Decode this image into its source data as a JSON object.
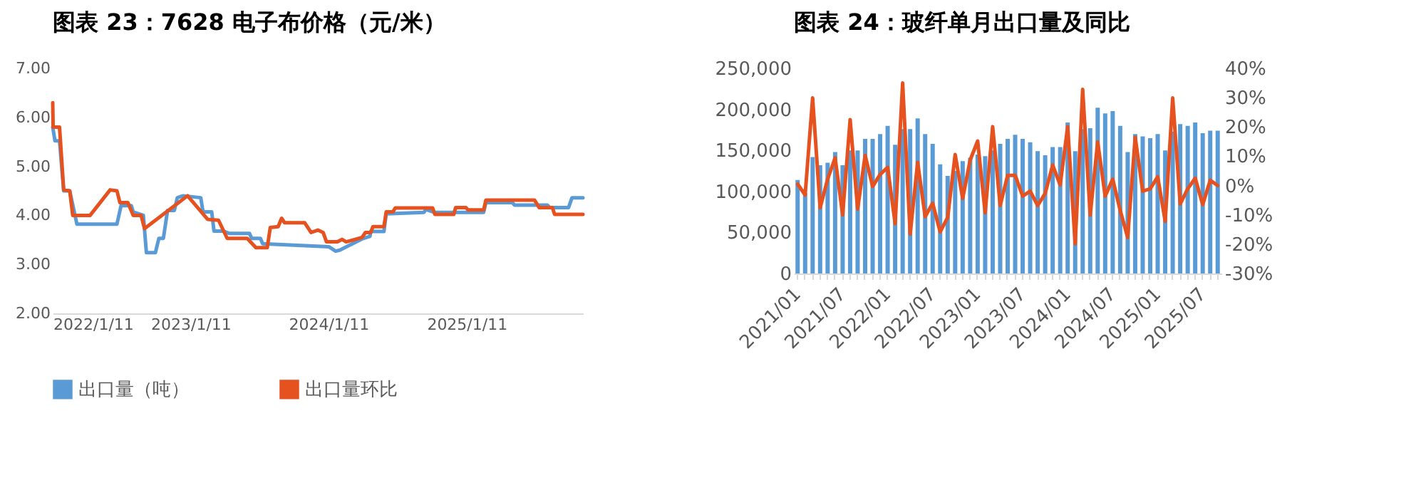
{
  "chart_data": [
    {
      "type": "line",
      "title": "图表 23：7628 电子布价格（元/米）",
      "series": [
        {
          "color": "#5b9bd5",
          "x": [
            "2022-01-11",
            "2022-01-17",
            "2022-01-29",
            "2022-02-09",
            "2022-02-25",
            "2022-03-16",
            "2022-06-30",
            "2022-07-11",
            "2022-08-07",
            "2022-08-12",
            "2022-09-08",
            "2022-09-16",
            "2022-10-10",
            "2022-10-19",
            "2022-10-31",
            "2022-11-11",
            "2022-11-29",
            "2022-12-07",
            "2022-12-22",
            "2023-02-07",
            "2023-02-13",
            "2023-03-08",
            "2023-03-14",
            "2023-04-07",
            "2023-04-24",
            "2023-06-16",
            "2023-06-22",
            "2023-07-15",
            "2023-07-21",
            "2024-01-12",
            "2024-01-30",
            "2024-02-10",
            "2024-04-09",
            "2024-04-30",
            "2024-05-02",
            "2024-06-06",
            "2024-06-12",
            "2024-09-20",
            "2024-09-25",
            "2024-10-19",
            "2025-02-25",
            "2025-03-03",
            "2025-05-12",
            "2025-05-18",
            "2025-08-13",
            "2025-08-19",
            "2025-10-08",
            "2025-10-17",
            "2025-11-15"
          ],
          "values": [
            5.8,
            5.52,
            5.52,
            4.5,
            4.5,
            3.82,
            3.82,
            4.2,
            4.2,
            4.07,
            4.0,
            3.24,
            3.24,
            3.53,
            3.53,
            4.1,
            4.1,
            4.36,
            4.4,
            4.36,
            4.07,
            4.07,
            3.68,
            3.68,
            3.63,
            3.63,
            3.53,
            3.53,
            3.42,
            3.36,
            3.27,
            3.29,
            3.52,
            3.57,
            3.67,
            3.67,
            4.03,
            4.06,
            4.12,
            4.06,
            4.06,
            4.26,
            4.26,
            4.21,
            4.21,
            4.16,
            4.16,
            4.36,
            4.36
          ]
        },
        {
          "color": "#e5511f",
          "x": [
            "2022-01-11",
            "2022-01-12",
            "2022-01-29",
            "2022-02-09",
            "2022-02-25",
            "2022-03-05",
            "2022-04-20",
            "2022-06-12",
            "2022-06-30",
            "2022-07-08",
            "2022-07-29",
            "2022-08-12",
            "2022-09-02",
            "2022-09-11",
            "2023-01-03",
            "2023-02-25",
            "2023-03-26",
            "2023-04-18",
            "2023-06-10",
            "2023-07-03",
            "2023-08-02",
            "2023-08-10",
            "2023-08-31",
            "2023-09-09",
            "2023-09-17",
            "2023-11-09",
            "2023-11-26",
            "2023-12-14",
            "2023-12-28",
            "2024-01-06",
            "2024-02-04",
            "2024-02-16",
            "2024-02-27",
            "2024-03-22",
            "2024-04-09",
            "2024-04-18",
            "2024-05-02",
            "2024-05-08",
            "2024-06-06",
            "2024-06-12",
            "2024-06-30",
            "2024-07-06",
            "2024-10-13",
            "2024-10-19",
            "2024-12-08",
            "2024-12-13",
            "2025-01-09",
            "2025-01-15",
            "2025-02-25",
            "2025-03-03",
            "2025-07-10",
            "2025-07-22",
            "2025-08-26",
            "2025-09-01",
            "2025-11-15"
          ],
          "values": [
            6.3,
            5.8,
            5.8,
            4.52,
            4.5,
            4.0,
            4.0,
            4.52,
            4.5,
            4.26,
            4.26,
            4.0,
            4.0,
            3.73,
            4.4,
            3.92,
            3.9,
            3.53,
            3.53,
            3.34,
            3.34,
            3.75,
            3.77,
            3.94,
            3.85,
            3.85,
            3.65,
            3.7,
            3.65,
            3.46,
            3.46,
            3.51,
            3.46,
            3.51,
            3.55,
            3.65,
            3.65,
            3.77,
            3.77,
            4.07,
            4.07,
            4.15,
            4.15,
            4.02,
            4.02,
            4.16,
            4.16,
            4.11,
            4.11,
            4.31,
            4.31,
            4.16,
            4.16,
            4.02,
            4.02
          ]
        }
      ],
      "xlim": [
        "2022-01-11",
        "2025-11-15"
      ],
      "xticks": [
        {
          "value": "2022-01-11",
          "label": "2022/1/11"
        },
        {
          "value": "2023-01-11",
          "label": "2023/1/11"
        },
        {
          "value": "2024-01-11",
          "label": "2024/1/11"
        },
        {
          "value": "2025-01-11",
          "label": "2025/1/11"
        }
      ],
      "ylim": [
        2,
        7
      ],
      "yticks": [
        {
          "value": 2,
          "label": "2.00"
        },
        {
          "value": 3,
          "label": "3.00"
        },
        {
          "value": 4,
          "label": "4.00"
        },
        {
          "value": 5,
          "label": "5.00"
        },
        {
          "value": 6,
          "label": "6.00"
        },
        {
          "value": 7,
          "label": "7.00"
        }
      ]
    },
    {
      "type": "bar",
      "title": "图表 24：玻纤单月出口量及同比",
      "categories": [
        "2021/01",
        null,
        null,
        null,
        null,
        null,
        "2021/07",
        null,
        null,
        null,
        null,
        null,
        "2022/01",
        null,
        null,
        null,
        null,
        null,
        "2022/07",
        null,
        null,
        null,
        null,
        null,
        "2023/01",
        null,
        null,
        null,
        null,
        null,
        "2023/07",
        null,
        null,
        null,
        null,
        null,
        "2024/01",
        null,
        null,
        null,
        null,
        null,
        "2024/07",
        null,
        null,
        null,
        null,
        null,
        "2025/01",
        null,
        null,
        null,
        null,
        null,
        "2025/07",
        null,
        null
      ],
      "series": [
        {
          "name": "出口量（吨）",
          "type": "bar",
          "color": "#5b9bd5",
          "values": [
            114000,
            98000,
            142000,
            132000,
            135000,
            148000,
            132000,
            150000,
            150000,
            164000,
            164000,
            170000,
            180000,
            157000,
            176000,
            176000,
            189000,
            170000,
            158000,
            133000,
            119000,
            125000,
            137000,
            141000,
            145000,
            143000,
            150000,
            158000,
            164000,
            169000,
            164000,
            160000,
            149000,
            144000,
            154000,
            154000,
            184000,
            149000,
            176000,
            177000,
            202000,
            195000,
            198000,
            180000,
            148000,
            170000,
            167000,
            165000,
            170000,
            150000,
            173000,
            182000,
            180000,
            184000,
            171000,
            174000,
            174000
          ]
        },
        {
          "name": "出口量环比",
          "type": "line",
          "axis": "y2",
          "color": "#e5511f",
          "values": [
            0.5,
            -3.2,
            29.9,
            -7.6,
            2.2,
            9.5,
            -10,
            22.5,
            -8,
            10.3,
            -0.3,
            3.8,
            6.2,
            -13,
            35,
            -16.6,
            7.9,
            -10.6,
            -6,
            -15.8,
            -10.9,
            10.6,
            -4.4,
            8.7,
            15.2,
            -9.3,
            20.1,
            -6.8,
            3.5,
            3.5,
            -3.6,
            -1.9,
            -6.8,
            -2.7,
            7,
            0.2,
            20.1,
            -19.9,
            32.8,
            -10.1,
            14.9,
            -3.6,
            2.2,
            -8.5,
            -17.7,
            16.5,
            -1.9,
            -1.1,
            3,
            -12.2,
            29.9,
            -6.3,
            -1.1,
            2.5,
            -6.5,
            1.8,
            0
          ]
        }
      ],
      "ylim": [
        0,
        250000
      ],
      "yticks": [
        0,
        {
          "value": 50000,
          "label": "50,000"
        },
        {
          "value": 100000,
          "label": "100,000"
        },
        {
          "value": 150000,
          "label": "150,000"
        },
        {
          "value": 200000,
          "label": "200,000"
        },
        {
          "value": 250000,
          "label": "250,000"
        }
      ],
      "y2lim": [
        -30,
        40
      ],
      "y2ticks": [
        {
          "value": -30,
          "label": "-30%"
        },
        {
          "value": -20,
          "label": "-20%"
        },
        {
          "value": -10,
          "label": "-10%"
        },
        {
          "value": 0,
          "label": "0%"
        },
        {
          "value": 10,
          "label": "10%"
        },
        {
          "value": 20,
          "label": "20%"
        },
        {
          "value": 30,
          "label": "30%"
        },
        {
          "value": 40,
          "label": "40%"
        }
      ],
      "legend": "bottom"
    }
  ]
}
